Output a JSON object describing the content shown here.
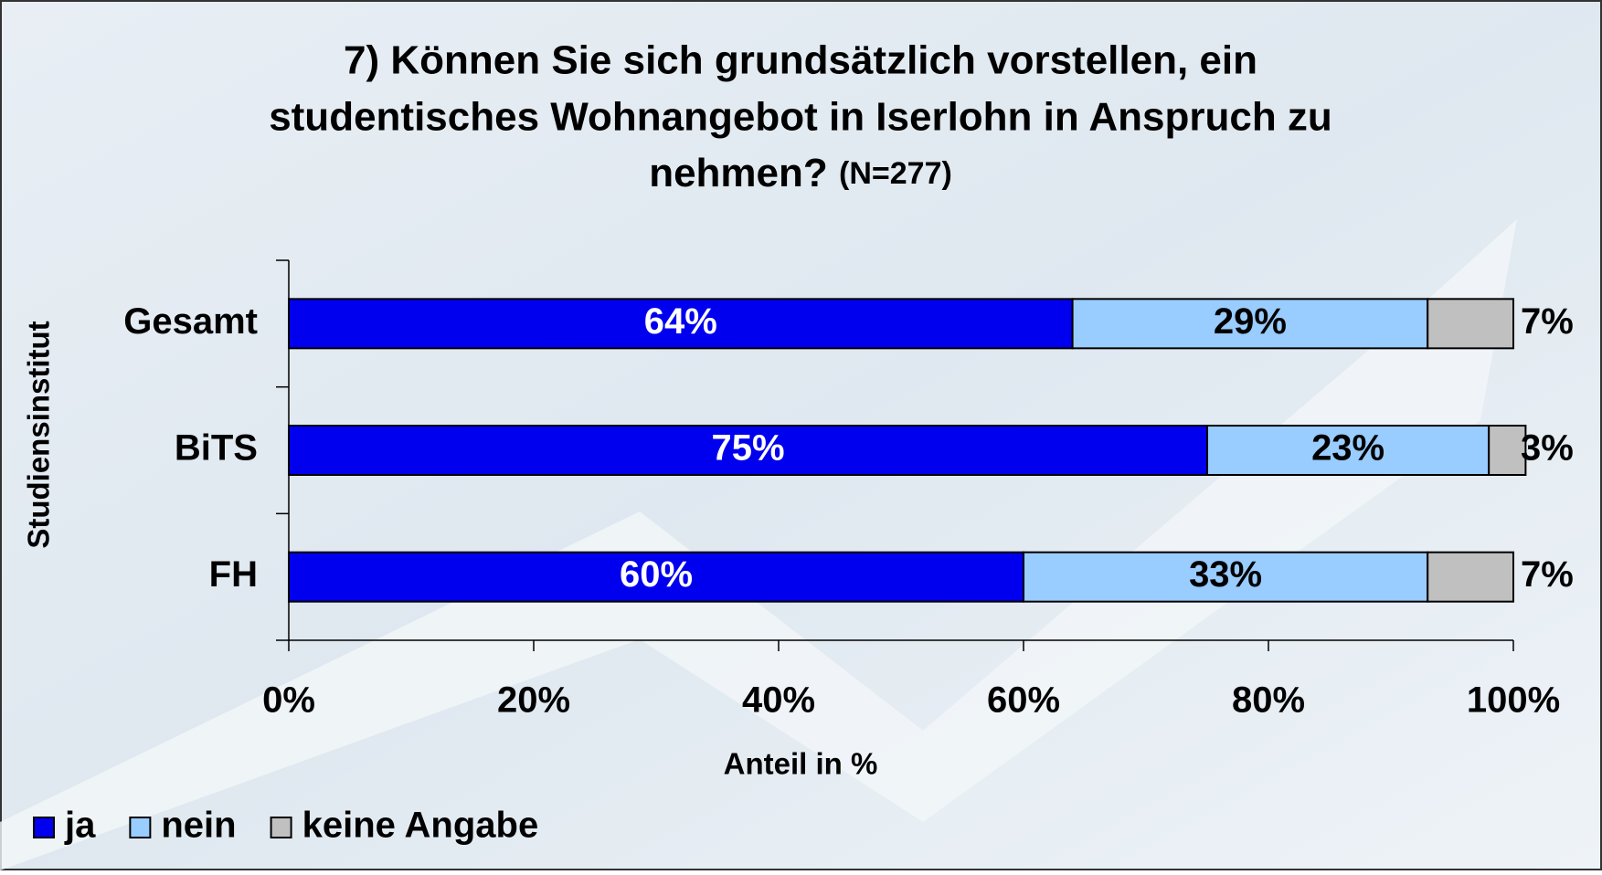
{
  "chart_data": {
    "type": "stacked_barh",
    "title": [
      "7) Können Sie sich grundsätzlich vorstellen, ein",
      "studentisches Wohnangebot in Iserlohn in Anspruch zu",
      "nehmen?"
    ],
    "subtitle": "(N=277)",
    "categories": [
      "Gesamt",
      "BiTS",
      "FH"
    ],
    "series": [
      {
        "name": "ja",
        "color": "#0000ee",
        "label_color": "#ffffff",
        "label_position": "inside",
        "values": [
          64,
          75,
          60
        ],
        "value_labels": [
          "64%",
          "75%",
          "60%"
        ]
      },
      {
        "name": "nein",
        "color": "#99ccff",
        "label_color": "#000000",
        "label_position": "inside",
        "values": [
          29,
          23,
          33
        ],
        "value_labels": [
          "29%",
          "23%",
          "33%"
        ]
      },
      {
        "name": "keine Angabe",
        "color": "#c0c0c0",
        "label_color": "#000000",
        "label_position": "outside",
        "values": [
          7,
          3,
          7
        ],
        "value_labels": [
          "7%",
          "3%",
          "7%"
        ]
      }
    ],
    "xlim": [
      0,
      100
    ],
    "xticks": [
      {
        "value": 0,
        "label": "0%"
      },
      {
        "value": 20,
        "label": "20%"
      },
      {
        "value": 40,
        "label": "40%"
      },
      {
        "value": 60,
        "label": "60%"
      },
      {
        "value": 80,
        "label": "80%"
      },
      {
        "value": 100,
        "label": "100%"
      }
    ],
    "xlabel": "Anteil in %",
    "ylabel": "Studiensinstitut",
    "legend": "bottom-left"
  }
}
